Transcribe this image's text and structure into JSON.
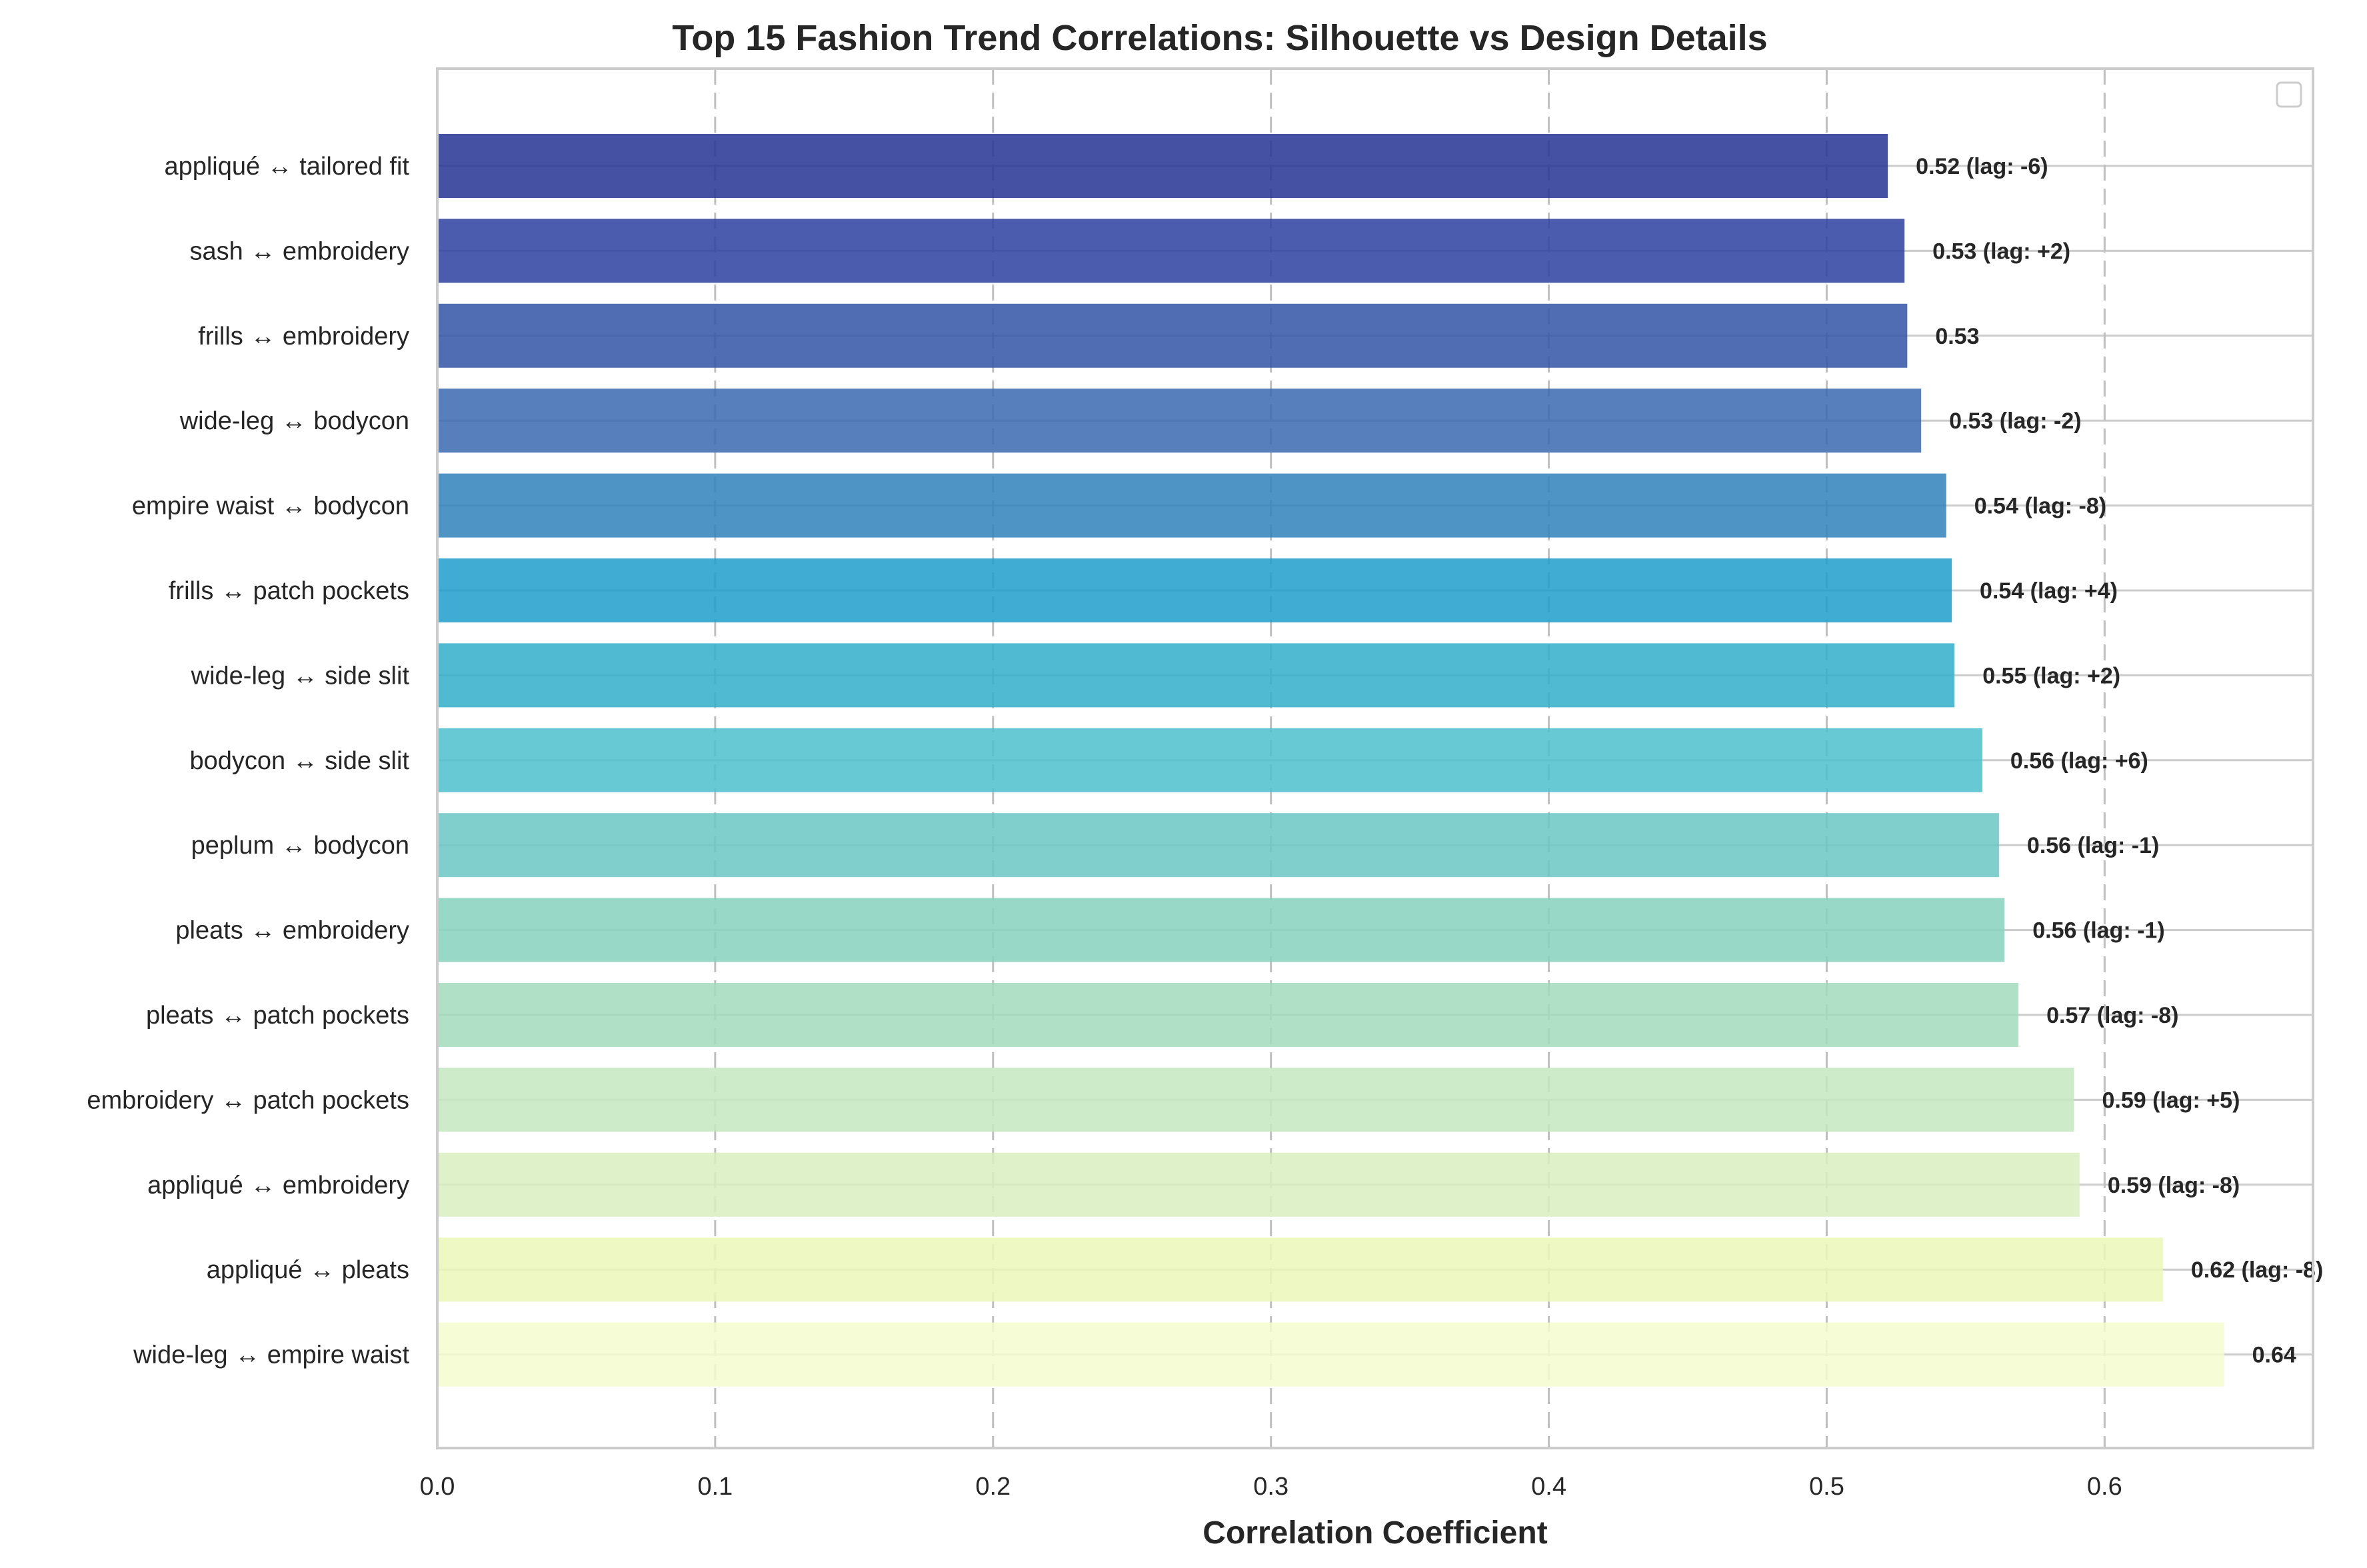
{
  "chart_data": {
    "type": "bar",
    "orientation": "horizontal",
    "title": "Top 15 Fashion Trend Correlations: Silhouette vs Design Details",
    "xlabel": "Correlation Coefficient",
    "ylabel": "",
    "xlim": [
      0,
      0.675
    ],
    "xticks": [
      0.0,
      0.1,
      0.2,
      0.3,
      0.4,
      0.5,
      0.6
    ],
    "grid": true,
    "legend": "top-right (empty)",
    "colormap": "YlGnBu",
    "categories": [
      "appliqué ↔ tailored fit",
      "sash ↔ embroidery",
      "frills ↔ embroidery",
      "wide-leg ↔ bodycon",
      "empire waist ↔ bodycon",
      "frills ↔ patch pockets",
      "wide-leg ↔ side slit",
      "bodycon ↔ side slit",
      "peplum ↔ bodycon",
      "pleats ↔ embroidery",
      "pleats ↔ patch pockets",
      "embroidery ↔ patch pockets",
      "appliqué ↔ embroidery",
      "appliqué ↔ pleats",
      "wide-leg ↔ empire waist"
    ],
    "values": [
      0.522,
      0.528,
      0.529,
      0.534,
      0.543,
      0.545,
      0.546,
      0.556,
      0.562,
      0.564,
      0.569,
      0.589,
      0.591,
      0.621,
      0.643
    ],
    "data_labels": [
      "0.52 (lag: -6)",
      "0.53 (lag: +2)",
      "0.53",
      "0.53 (lag: -2)",
      "0.54 (lag: -8)",
      "0.54 (lag: +4)",
      "0.55 (lag: +2)",
      "0.56 (lag: +6)",
      "0.56 (lag: -1)",
      "0.56 (lag: -1)",
      "0.57 (lag: -8)",
      "0.59 (lag: +5)",
      "0.59 (lag: -8)",
      "0.62 (lag: -8)",
      "0.64"
    ],
    "colors": [
      "#253494",
      "#2b3fa0",
      "#3154a6",
      "#3869af",
      "#2f82bb",
      "#1f9ccb",
      "#33aecb",
      "#4cbfcb",
      "#6ac7c4",
      "#86d1bc",
      "#a2dcbc",
      "#c4e8c0",
      "#d8efbe",
      "#ebf7b9",
      "#f5fbcf"
    ]
  }
}
